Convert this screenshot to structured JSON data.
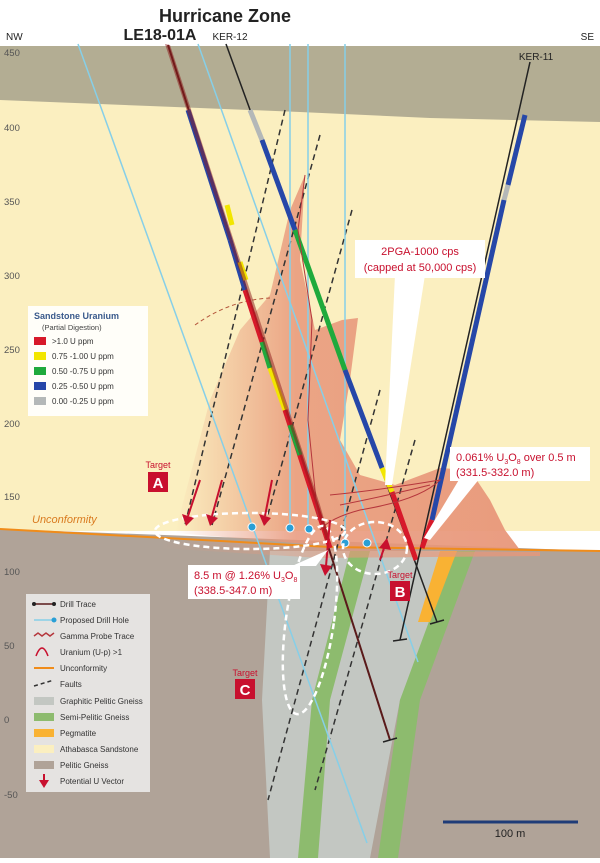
{
  "title": {
    "line1": "Hurricane Zone",
    "line2": "LE18-01A"
  },
  "orientation": {
    "left": "NW",
    "right": "SE"
  },
  "hole_labels": {
    "ker12": "KER-12",
    "ker11": "KER-11"
  },
  "elevation_ticks": [
    "450",
    "400",
    "350",
    "300",
    "250",
    "200",
    "150",
    "100",
    "50",
    "0",
    "-50"
  ],
  "unconformity_label": "Unconformity",
  "sandstone_legend": {
    "title": "Sandstone Uranium",
    "subtitle": "(Partial Digestion)",
    "items": [
      {
        "label": ">1.0 U ppm",
        "color": "#d7192a"
      },
      {
        "label": "0.75 -1.00 U ppm",
        "color": "#f2e600"
      },
      {
        "label": "0.50 -0.75 U ppm",
        "color": "#1faa3c"
      },
      {
        "label": "0.25 -0.50 U ppm",
        "color": "#2647a8"
      },
      {
        "label": "0.00 -0.25 U ppm",
        "color": "#b4b8b8"
      }
    ]
  },
  "main_legend": {
    "items": [
      {
        "label": "Drill Trace",
        "icon": "drill-trace"
      },
      {
        "label": "Proposed Drill Hole",
        "icon": "proposed-hole"
      },
      {
        "label": "Gamma Probe Trace",
        "icon": "gamma-trace"
      },
      {
        "label": "Uranium (U-p) >1",
        "icon": "uranium-peak"
      },
      {
        "label": "Unconformity",
        "icon": "unconformity-line"
      },
      {
        "label": "Faults",
        "icon": "fault-dash"
      },
      {
        "label": "Graphitic Pelitic Gneiss",
        "color": "#c3c7c2"
      },
      {
        "label": "Semi-Pelitic Gneiss",
        "color": "#8dbb6e"
      },
      {
        "label": "Pegmatite",
        "color": "#f9b233"
      },
      {
        "label": "Athabasca Sandstone",
        "color": "#fbefc0"
      },
      {
        "label": "Pelitic Gneiss",
        "color": "#b0a398"
      },
      {
        "label": "Potential U Vector",
        "icon": "red-arrow"
      }
    ]
  },
  "callouts": {
    "probe": {
      "line1": "2PGA-1000 cps",
      "line2": "(capped at 50,000 cps)"
    },
    "result_b": {
      "pre": "0.061% U",
      "sub1": "3",
      "mid": "O",
      "sub2": "8",
      "post": " over 0.5 m",
      "line2": "(331.5-332.0 m)"
    },
    "result_c": {
      "pre": "8.5 m @ 1.26% U",
      "sub1": "3",
      "mid": "O",
      "sub2": "8",
      "line2": "(338.5-347.0 m)"
    }
  },
  "targets": [
    {
      "word": "Target",
      "letter": "A"
    },
    {
      "word": "Target",
      "letter": "B"
    },
    {
      "word": "Target",
      "letter": "C"
    }
  ],
  "scale_bar": {
    "label": "100 m"
  },
  "colors": {
    "sandstone": "#fbefc0",
    "overburden": "#b3ad93",
    "basement": "#b0a398",
    "alteration": "#e8977a",
    "proposed": "#86cfe8",
    "red": "#c8102e",
    "unconformity": "#f08c1a"
  }
}
